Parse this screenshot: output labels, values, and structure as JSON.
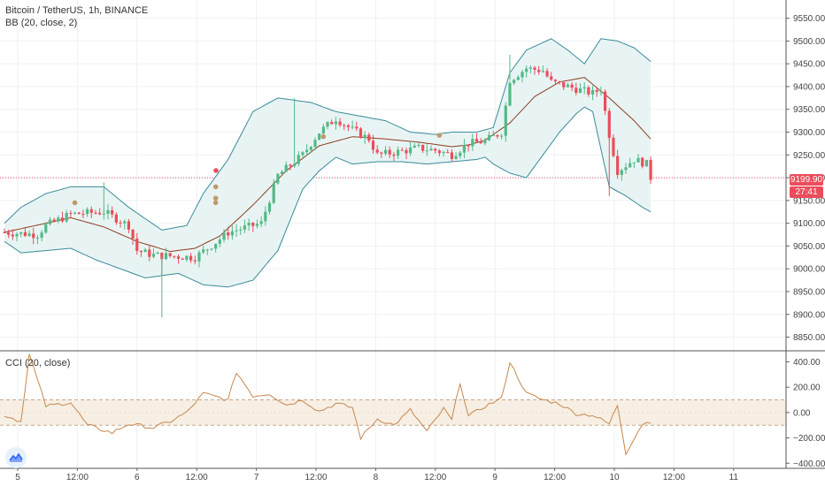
{
  "main_legend": "Bitcoin / TetherUS, 1h, BINANCE",
  "bb_legend": "BB (20, close, 2)",
  "cci_legend": "CCI (20, close)",
  "last_price_label": "9199.90",
  "countdown_label": "27:41",
  "chart_data": [
    {
      "type": "candlestick",
      "id": "price",
      "ylim": [
        8820,
        9590
      ],
      "y_ticks": [
        8850,
        8900,
        8950,
        9000,
        9050,
        9100,
        9150,
        9200,
        9250,
        9300,
        9350,
        9400,
        9450,
        9500,
        9550
      ],
      "x_labels": [
        "5",
        "12:00",
        "6",
        "12:00",
        "7",
        "12:00",
        "8",
        "12:00",
        "9",
        "12:00",
        "10",
        "12:00",
        "11"
      ],
      "last_price": 9199.9,
      "colors": {
        "up": "#53b987",
        "down": "#eb4d5c",
        "bb_basis": "#8e3d1e",
        "bb_band": "#3a8b9a",
        "bb_fill": "#e8f4f4"
      },
      "anchors": [
        [
          0,
          9080
        ],
        [
          8,
          9075
        ],
        [
          10,
          9095
        ],
        [
          16,
          9120
        ],
        [
          24,
          9125
        ],
        [
          30,
          9095
        ],
        [
          32,
          9040
        ],
        [
          36,
          9030
        ],
        [
          46,
          9025
        ],
        [
          52,
          9065
        ],
        [
          54,
          9080
        ],
        [
          62,
          9100
        ],
        [
          66,
          9205
        ],
        [
          72,
          9250
        ],
        [
          76,
          9300
        ],
        [
          80,
          9330
        ],
        [
          84,
          9305
        ],
        [
          88,
          9285
        ],
        [
          90,
          9250
        ],
        [
          94,
          9255
        ],
        [
          100,
          9265
        ],
        [
          104,
          9260
        ],
        [
          108,
          9250
        ],
        [
          112,
          9275
        ],
        [
          116,
          9280
        ],
        [
          118,
          9290
        ],
        [
          120,
          9300
        ],
        [
          122,
          9415
        ],
        [
          126,
          9440
        ],
        [
          130,
          9435
        ],
        [
          132,
          9410
        ],
        [
          136,
          9400
        ],
        [
          140,
          9390
        ],
        [
          142,
          9385
        ],
        [
          144,
          9395
        ],
        [
          146,
          9295
        ],
        [
          148,
          9215
        ],
        [
          152,
          9240
        ],
        [
          155,
          9230
        ],
        [
          156,
          9200
        ]
      ],
      "basis_anchors": [
        [
          0,
          9080
        ],
        [
          10,
          9100
        ],
        [
          16,
          9112
        ],
        [
          24,
          9092
        ],
        [
          32,
          9060
        ],
        [
          40,
          9038
        ],
        [
          46,
          9045
        ],
        [
          52,
          9072
        ],
        [
          60,
          9140
        ],
        [
          68,
          9215
        ],
        [
          76,
          9270
        ],
        [
          84,
          9290
        ],
        [
          92,
          9285
        ],
        [
          100,
          9278
        ],
        [
          108,
          9268
        ],
        [
          112,
          9272
        ],
        [
          116,
          9282
        ],
        [
          122,
          9320
        ],
        [
          128,
          9378
        ],
        [
          134,
          9410
        ],
        [
          140,
          9420
        ],
        [
          142,
          9405
        ],
        [
          146,
          9375
        ],
        [
          152,
          9325
        ],
        [
          156,
          9285
        ]
      ],
      "upper_anchors": [
        [
          0,
          9100
        ],
        [
          4,
          9135
        ],
        [
          10,
          9165
        ],
        [
          16,
          9180
        ],
        [
          24,
          9180
        ],
        [
          30,
          9135
        ],
        [
          38,
          9085
        ],
        [
          44,
          9095
        ],
        [
          48,
          9165
        ],
        [
          54,
          9240
        ],
        [
          60,
          9345
        ],
        [
          66,
          9375
        ],
        [
          74,
          9365
        ],
        [
          80,
          9345
        ],
        [
          86,
          9335
        ],
        [
          92,
          9325
        ],
        [
          98,
          9300
        ],
        [
          104,
          9295
        ],
        [
          108,
          9300
        ],
        [
          114,
          9300
        ],
        [
          118,
          9310
        ],
        [
          122,
          9430
        ],
        [
          126,
          9480
        ],
        [
          132,
          9505
        ],
        [
          136,
          9480
        ],
        [
          140,
          9450
        ],
        [
          144,
          9505
        ],
        [
          148,
          9500
        ],
        [
          152,
          9485
        ],
        [
          156,
          9455
        ]
      ],
      "lower_anchors": [
        [
          0,
          9060
        ],
        [
          4,
          9035
        ],
        [
          10,
          9040
        ],
        [
          16,
          9045
        ],
        [
          22,
          9020
        ],
        [
          28,
          9000
        ],
        [
          34,
          8980
        ],
        [
          42,
          8990
        ],
        [
          48,
          8965
        ],
        [
          54,
          8960
        ],
        [
          60,
          8975
        ],
        [
          66,
          9040
        ],
        [
          72,
          9175
        ],
        [
          76,
          9215
        ],
        [
          80,
          9245
        ],
        [
          84,
          9230
        ],
        [
          90,
          9235
        ],
        [
          96,
          9235
        ],
        [
          102,
          9230
        ],
        [
          108,
          9235
        ],
        [
          114,
          9240
        ],
        [
          116,
          9245
        ],
        [
          118,
          9230
        ],
        [
          122,
          9210
        ],
        [
          126,
          9200
        ],
        [
          130,
          9250
        ],
        [
          134,
          9300
        ],
        [
          138,
          9340
        ],
        [
          140,
          9355
        ],
        [
          142,
          9345
        ],
        [
          146,
          9180
        ],
        [
          150,
          9160
        ],
        [
          154,
          9135
        ],
        [
          156,
          9125
        ]
      ]
    },
    {
      "type": "line",
      "id": "cci",
      "ylim": [
        -440,
        480
      ],
      "y_ticks": [
        -400,
        -200,
        0,
        200,
        400
      ],
      "band": [
        -100,
        100
      ],
      "colors": {
        "line": "#c7874e",
        "band_fill": "#f7efe4",
        "band_line": "#c7a88a"
      },
      "anchors": [
        [
          0,
          -20
        ],
        [
          4,
          -70
        ],
        [
          6,
          460
        ],
        [
          10,
          50
        ],
        [
          16,
          80
        ],
        [
          20,
          -100
        ],
        [
          26,
          -160
        ],
        [
          30,
          -90
        ],
        [
          36,
          -120
        ],
        [
          40,
          -70
        ],
        [
          44,
          0
        ],
        [
          48,
          150
        ],
        [
          54,
          100
        ],
        [
          56,
          320
        ],
        [
          60,
          130
        ],
        [
          64,
          150
        ],
        [
          68,
          60
        ],
        [
          72,
          100
        ],
        [
          76,
          10
        ],
        [
          80,
          70
        ],
        [
          84,
          40
        ],
        [
          86,
          -200
        ],
        [
          90,
          -50
        ],
        [
          94,
          -100
        ],
        [
          98,
          20
        ],
        [
          102,
          -150
        ],
        [
          106,
          30
        ],
        [
          108,
          -60
        ],
        [
          110,
          240
        ],
        [
          112,
          -30
        ],
        [
          116,
          50
        ],
        [
          120,
          110
        ],
        [
          122,
          400
        ],
        [
          126,
          150
        ],
        [
          130,
          100
        ],
        [
          134,
          70
        ],
        [
          138,
          -10
        ],
        [
          142,
          -20
        ],
        [
          146,
          -90
        ],
        [
          148,
          60
        ],
        [
          150,
          -320
        ],
        [
          152,
          -200
        ],
        [
          154,
          -90
        ],
        [
          156,
          -70
        ]
      ]
    }
  ]
}
